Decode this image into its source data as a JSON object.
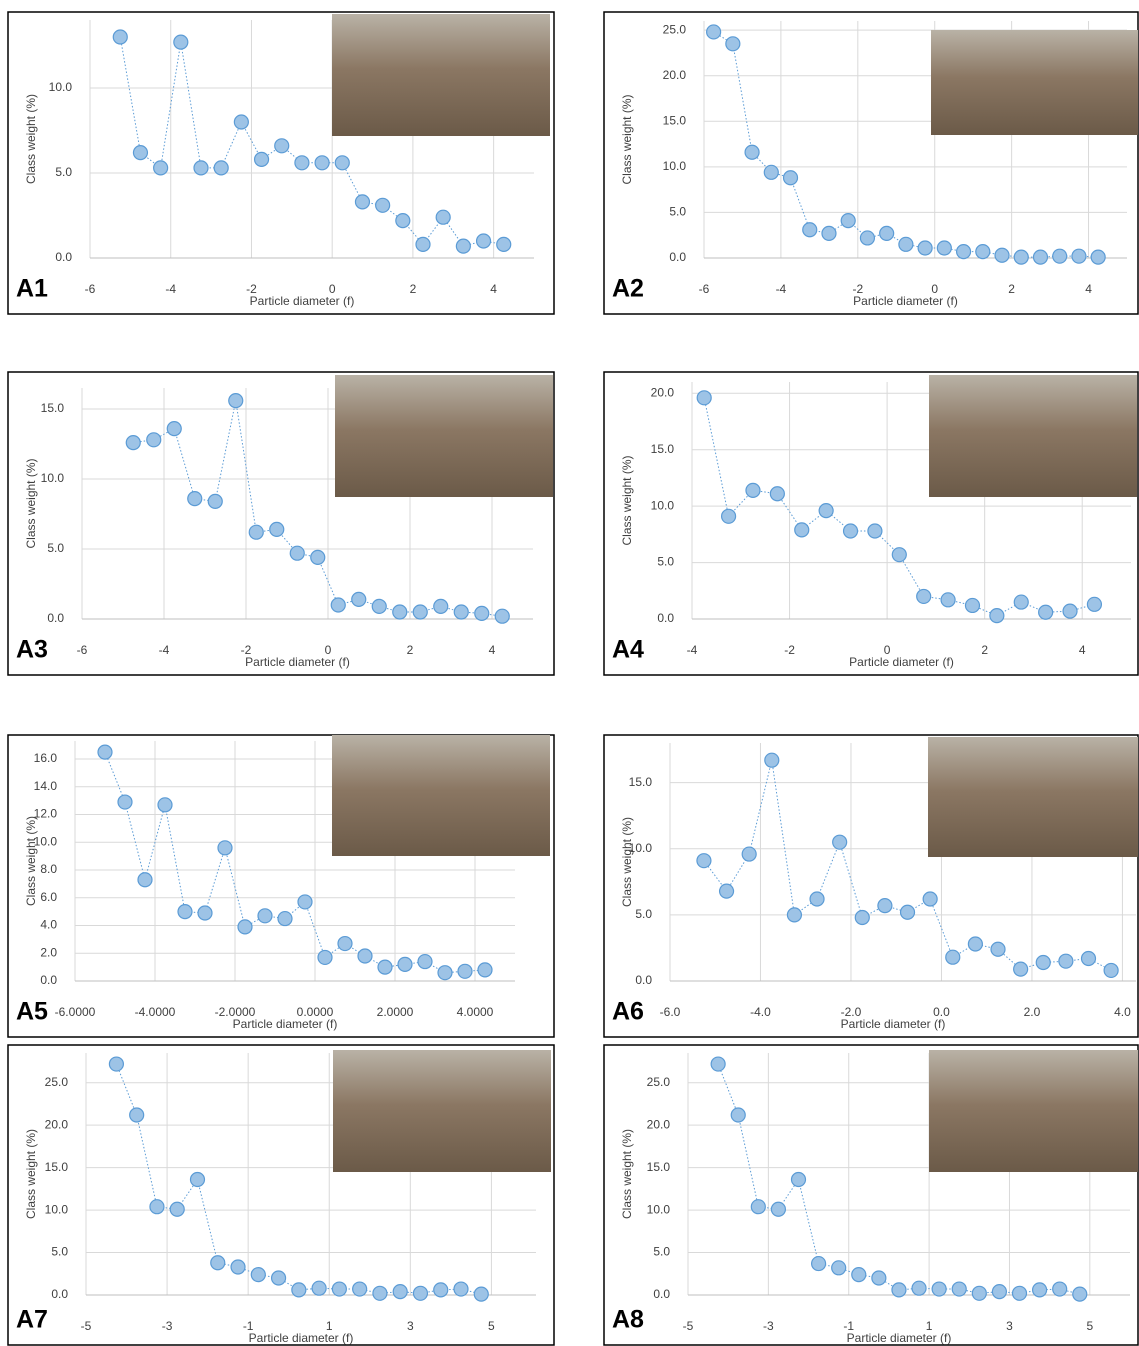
{
  "chart_data": [
    {
      "type": "line",
      "label": "A1",
      "x_label": "Particle diameter (f)",
      "y_label": "Class weight (%)",
      "grid": true,
      "color": "#9dc3e6",
      "x": [
        -5.25,
        -4.75,
        -4.25,
        -3.75,
        -3.25,
        -2.75,
        -2.25,
        -1.75,
        -1.25,
        -0.75,
        -0.25,
        0.25,
        0.75,
        1.25,
        1.75,
        2.25,
        2.75,
        3.25,
        3.75,
        4.25
      ],
      "values": [
        13.0,
        6.2,
        5.3,
        12.7,
        5.3,
        5.3,
        8.0,
        5.8,
        6.6,
        5.6,
        5.6,
        5.6,
        3.3,
        3.1,
        2.2,
        0.8,
        2.4,
        0.7,
        1.0,
        0.8
      ],
      "xlim": [
        -6,
        5
      ],
      "ylim": [
        0,
        14
      ],
      "xticks": [
        -6,
        -4,
        -2,
        0,
        2,
        4
      ],
      "yticks": [
        {
          "value": 0,
          "label": "0.0"
        },
        {
          "value": 5,
          "label": "5.0"
        },
        {
          "value": 10,
          "label": "10.0"
        }
      ]
    },
    {
      "type": "line",
      "label": "A2",
      "x_label": "Particle diameter (f)",
      "y_label": "Class weight (%)",
      "grid": true,
      "color": "#9dc3e6",
      "x": [
        -5.75,
        -5.25,
        -4.75,
        -4.25,
        -3.75,
        -3.25,
        -2.75,
        -2.25,
        -1.75,
        -1.25,
        -0.75,
        -0.25,
        0.25,
        0.75,
        1.25,
        1.75,
        2.25,
        2.75,
        3.25,
        3.75,
        4.25
      ],
      "values": [
        24.8,
        23.5,
        11.6,
        9.4,
        8.8,
        3.1,
        2.7,
        4.1,
        2.2,
        2.7,
        1.5,
        1.1,
        1.1,
        0.7,
        0.7,
        0.3,
        0.1,
        0.1,
        0.2,
        0.2,
        0.1
      ],
      "xlim": [
        -6,
        5
      ],
      "ylim": [
        0,
        26
      ],
      "xticks": [
        -6,
        -4,
        -2,
        0,
        2,
        4
      ],
      "yticks": [
        {
          "value": 0,
          "label": "0.0"
        },
        {
          "value": 5,
          "label": "5.0"
        },
        {
          "value": 10,
          "label": "10.0"
        },
        {
          "value": 15,
          "label": "15.0"
        },
        {
          "value": 20,
          "label": "20.0"
        },
        {
          "value": 25,
          "label": "25.0"
        }
      ]
    },
    {
      "type": "line",
      "label": "A3",
      "x_label": "Particle diameter (f)",
      "y_label": "Class weight (%)",
      "grid": true,
      "color": "#9dc3e6",
      "x": [
        -4.75,
        -4.25,
        -3.75,
        -3.25,
        -2.75,
        -2.25,
        -1.75,
        -1.25,
        -0.75,
        -0.25,
        0.25,
        0.75,
        1.25,
        1.75,
        2.25,
        2.75,
        3.25,
        3.75,
        4.25
      ],
      "values": [
        12.6,
        12.8,
        13.6,
        8.6,
        8.4,
        15.6,
        6.2,
        6.4,
        4.7,
        4.4,
        1.0,
        1.4,
        0.9,
        0.5,
        0.5,
        0.9,
        0.5,
        0.4,
        0.2
      ],
      "xlim": [
        -6,
        5
      ],
      "ylim": [
        0,
        16.5
      ],
      "xticks": [
        -6,
        -4,
        -2,
        0,
        2,
        4
      ],
      "yticks": [
        {
          "value": 0,
          "label": "0.0"
        },
        {
          "value": 5,
          "label": "5.0"
        },
        {
          "value": 10,
          "label": "10.0"
        },
        {
          "value": 15,
          "label": "15.0"
        }
      ]
    },
    {
      "type": "line",
      "label": "A4",
      "x_label": "Particle diameter (f)",
      "y_label": "Class weight (%)",
      "grid": true,
      "color": "#9dc3e6",
      "x": [
        -3.75,
        -3.25,
        -2.75,
        -2.25,
        -1.75,
        -1.25,
        -0.75,
        -0.25,
        0.25,
        0.75,
        1.25,
        1.75,
        2.25,
        2.75,
        3.25,
        3.75,
        4.25
      ],
      "values": [
        19.6,
        9.1,
        11.4,
        11.1,
        7.9,
        9.6,
        7.8,
        7.8,
        5.7,
        2.0,
        1.7,
        1.2,
        0.3,
        1.5,
        0.6,
        0.7,
        1.3
      ],
      "xlim": [
        -4,
        5
      ],
      "ylim": [
        0,
        21
      ],
      "xticks": [
        -4,
        -2,
        0,
        2,
        4
      ],
      "yticks": [
        {
          "value": 0,
          "label": "0.0"
        },
        {
          "value": 5,
          "label": "5.0"
        },
        {
          "value": 10,
          "label": "10.0"
        },
        {
          "value": 15,
          "label": "15.0"
        },
        {
          "value": 20,
          "label": "20.0"
        }
      ]
    },
    {
      "type": "line",
      "label": "A5",
      "x_label": "Particle diameter (f)",
      "y_label": "Class weight (%)",
      "grid": true,
      "color": "#9dc3e6",
      "x": [
        -5.25,
        -4.75,
        -4.25,
        -3.75,
        -3.25,
        -2.75,
        -2.25,
        -1.75,
        -1.25,
        -0.75,
        -0.25,
        0.25,
        0.75,
        1.25,
        1.75,
        2.25,
        2.75,
        3.25,
        3.75,
        4.25
      ],
      "values": [
        16.5,
        12.9,
        7.3,
        12.7,
        5.0,
        4.9,
        9.6,
        3.9,
        4.7,
        4.5,
        5.7,
        1.7,
        2.7,
        1.8,
        1.0,
        1.2,
        1.4,
        0.6,
        0.7,
        0.8
      ],
      "xlim": [
        -6,
        5
      ],
      "ylim": [
        0,
        17.3
      ],
      "xticks": [
        {
          "value": -6,
          "label": "-6.0000"
        },
        {
          "value": -4,
          "label": "-4.0000"
        },
        {
          "value": -2,
          "label": "-2.0000"
        },
        {
          "value": 0,
          "label": "0.0000"
        },
        {
          "value": 2,
          "label": "2.0000"
        },
        {
          "value": 4,
          "label": "4.0000"
        }
      ],
      "yticks": [
        {
          "value": 0,
          "label": "0.0"
        },
        {
          "value": 2,
          "label": "2.0"
        },
        {
          "value": 4,
          "label": "4.0"
        },
        {
          "value": 6,
          "label": "6.0"
        },
        {
          "value": 8,
          "label": "8.0"
        },
        {
          "value": 10,
          "label": "10.0"
        },
        {
          "value": 12,
          "label": "12.0"
        },
        {
          "value": 14,
          "label": "14.0"
        },
        {
          "value": 16,
          "label": "16.0"
        }
      ]
    },
    {
      "type": "line",
      "label": "A6",
      "x_label": "Particle diameter (f)",
      "y_label": "Class weight (%)",
      "grid": true,
      "color": "#9dc3e6",
      "x": [
        -5.25,
        -4.75,
        -4.25,
        -3.75,
        -3.25,
        -2.75,
        -2.25,
        -1.75,
        -1.25,
        -0.75,
        -0.25,
        0.25,
        0.75,
        1.25,
        1.75,
        2.25,
        2.75,
        3.25,
        3.75
      ],
      "values": [
        9.1,
        6.8,
        9.6,
        16.7,
        5.0,
        6.2,
        10.5,
        4.8,
        5.7,
        5.2,
        6.2,
        1.8,
        2.8,
        2.4,
        0.9,
        1.4,
        1.5,
        1.7,
        0.8
      ],
      "xlim": [
        -6,
        4.3
      ],
      "ylim": [
        0,
        18
      ],
      "xticks": [
        {
          "value": -6,
          "label": "-6.0"
        },
        {
          "value": -4,
          "label": "-4.0"
        },
        {
          "value": -2,
          "label": "-2.0"
        },
        {
          "value": 0,
          "label": "0.0"
        },
        {
          "value": 2,
          "label": "2.0"
        },
        {
          "value": 4,
          "label": "4.0"
        }
      ],
      "yticks": [
        {
          "value": 0,
          "label": "0.0"
        },
        {
          "value": 5,
          "label": "5.0"
        },
        {
          "value": 10,
          "label": "10.0"
        },
        {
          "value": 15,
          "label": "15.0"
        }
      ]
    },
    {
      "type": "line",
      "label": "A7",
      "x_label": "Particle diameter (f)",
      "y_label": "Class weight (%)",
      "grid": true,
      "color": "#9dc3e6",
      "x": [
        -4.25,
        -3.75,
        -3.25,
        -2.75,
        -2.25,
        -1.75,
        -1.25,
        -0.75,
        -0.25,
        0.25,
        0.75,
        1.25,
        1.75,
        2.25,
        2.75,
        3.25,
        3.75,
        4.25,
        4.75
      ],
      "values": [
        27.2,
        21.2,
        10.4,
        10.1,
        13.6,
        3.8,
        3.3,
        2.4,
        2.0,
        0.6,
        0.8,
        0.7,
        0.7,
        0.2,
        0.4,
        0.2,
        0.6,
        0.7,
        0.1
      ],
      "xlim": [
        -5,
        6.1
      ],
      "ylim": [
        0,
        28.5
      ],
      "xticks": [
        -5,
        -3,
        -1,
        1,
        3,
        5
      ],
      "yticks": [
        {
          "value": 0,
          "label": "0.0"
        },
        {
          "value": 5,
          "label": "5.0"
        },
        {
          "value": 10,
          "label": "10.0"
        },
        {
          "value": 15,
          "label": "15.0"
        },
        {
          "value": 20,
          "label": "20.0"
        },
        {
          "value": 25,
          "label": "25.0"
        }
      ]
    },
    {
      "type": "line",
      "label": "A8",
      "x_label": "Particle diameter (f)",
      "y_label": "Class weight (%)",
      "grid": true,
      "color": "#9dc3e6",
      "x": [
        -4.25,
        -3.75,
        -3.25,
        -2.75,
        -2.25,
        -1.75,
        -1.25,
        -0.75,
        -0.25,
        0.25,
        0.75,
        1.25,
        1.75,
        2.25,
        2.75,
        3.25,
        3.75,
        4.25,
        4.75
      ],
      "values": [
        27.2,
        21.2,
        10.4,
        10.1,
        13.6,
        3.7,
        3.2,
        2.4,
        2.0,
        0.6,
        0.8,
        0.7,
        0.7,
        0.2,
        0.4,
        0.2,
        0.6,
        0.7,
        0.1
      ],
      "xlim": [
        -5,
        6
      ],
      "ylim": [
        0,
        28.5
      ],
      "xticks": [
        -5,
        -3,
        -1,
        1,
        3,
        5
      ],
      "yticks": [
        {
          "value": 0,
          "label": "0.0"
        },
        {
          "value": 5,
          "label": "5.0"
        },
        {
          "value": 10,
          "label": "10.0"
        },
        {
          "value": 15,
          "label": "15.0"
        },
        {
          "value": 20,
          "label": "20.0"
        },
        {
          "value": 25,
          "label": "25.0"
        }
      ]
    }
  ]
}
